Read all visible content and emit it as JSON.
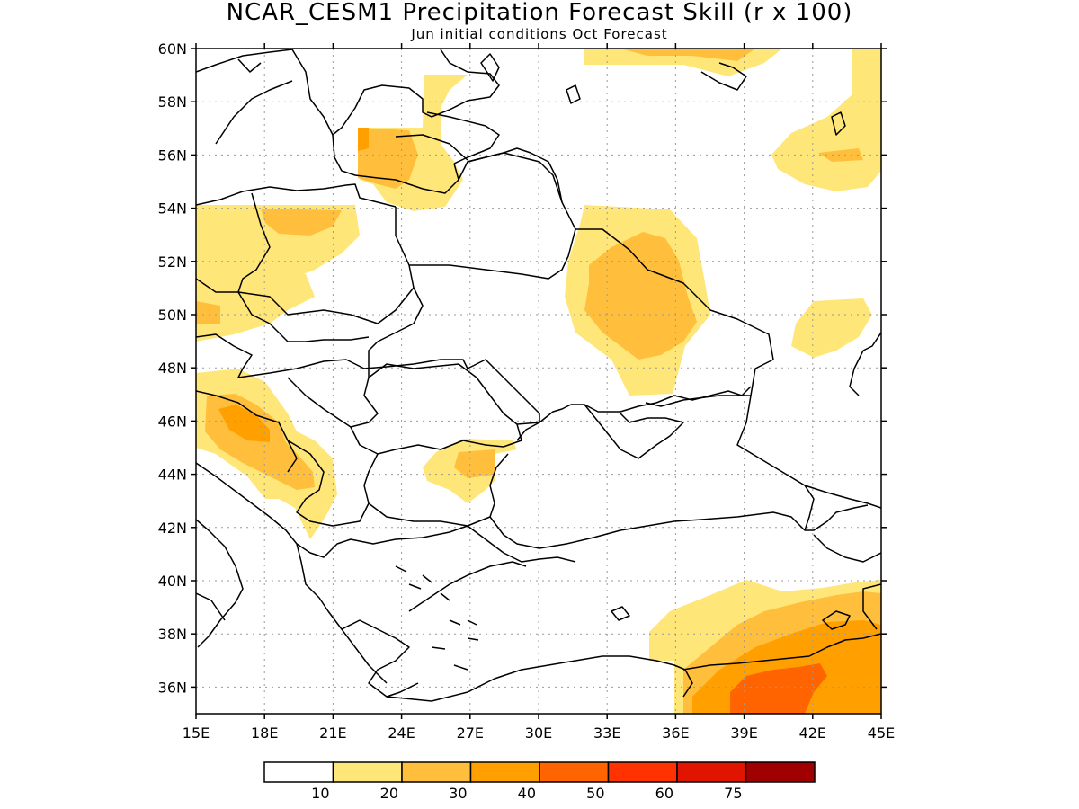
{
  "map": {
    "title": "NCAR_CESM1 Precipitation Forecast Skill (r x 100)",
    "subtitle": "Jun initial conditions  Oct Forecast",
    "projection": "lat-lon",
    "lon_range": [
      15,
      45
    ],
    "lat_range": [
      35,
      60
    ],
    "lat_ticks": [
      36,
      38,
      40,
      42,
      44,
      46,
      48,
      50,
      52,
      54,
      56,
      58,
      60
    ],
    "lat_labels": [
      "36N",
      "38N",
      "40N",
      "42N",
      "44N",
      "46N",
      "48N",
      "50N",
      "52N",
      "54N",
      "56N",
      "58N",
      "60N"
    ],
    "lon_ticks": [
      15,
      18,
      21,
      24,
      27,
      30,
      33,
      36,
      39,
      42,
      45
    ],
    "lon_labels": [
      "15E",
      "18E",
      "21E",
      "24E",
      "27E",
      "30E",
      "33E",
      "36E",
      "39E",
      "42E",
      "45E"
    ],
    "gridlines": "dotted",
    "skill_colors": [
      "#ffffff",
      "#ffe678",
      "#ffbf3c",
      "#ffa000",
      "#ff6400",
      "#ff3200",
      "#e11400",
      "#a00000"
    ]
  },
  "colorbar": {
    "labels": [
      "10",
      "20",
      "30",
      "40",
      "50",
      "60",
      "75"
    ],
    "colors": [
      "#ffffff",
      "#ffe678",
      "#ffbf3c",
      "#ffa000",
      "#ff6400",
      "#ff3200",
      "#e11400",
      "#a00000"
    ]
  }
}
